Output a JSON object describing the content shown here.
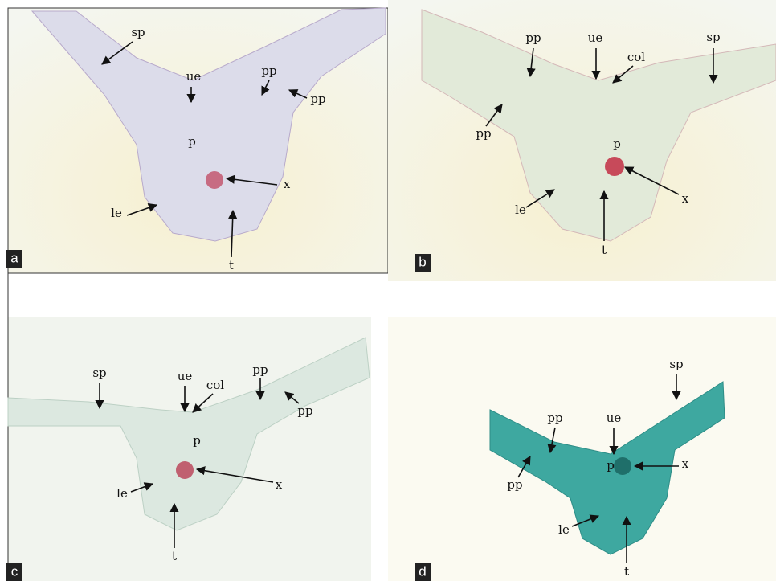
{
  "panels": [
    {
      "label": "a",
      "annotations": [
        "sp",
        "ue",
        "pp",
        "pp",
        "p",
        "x",
        "le",
        "t"
      ]
    },
    {
      "label": "b",
      "annotations": [
        "pp",
        "ue",
        "col",
        "sp",
        "pp",
        "p",
        "x",
        "le",
        "t"
      ]
    },
    {
      "label": "c",
      "annotations": [
        "sp",
        "ue",
        "col",
        "pp",
        "pp",
        "p",
        "x",
        "le",
        "t"
      ]
    },
    {
      "label": "d",
      "annotations": [
        "pp",
        "ue",
        "sp",
        "pp",
        "p",
        "x",
        "le",
        "t"
      ]
    }
  ]
}
